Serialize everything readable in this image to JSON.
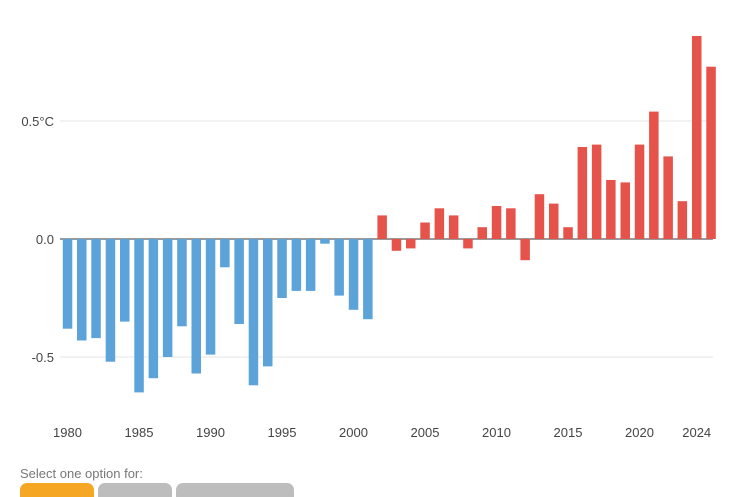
{
  "chart_data": {
    "type": "bar",
    "title": "",
    "xlabel": "",
    "ylabel": "",
    "ylim": [
      -0.75,
      0.9
    ],
    "y_ticks": [
      {
        "value": 0.5,
        "label": "0.5°C"
      },
      {
        "value": 0.0,
        "label": "0.0"
      },
      {
        "value": -0.5,
        "label": "-0.5"
      }
    ],
    "x_ticks": [
      "1980",
      "1985",
      "1990",
      "1995",
      "2000",
      "2005",
      "2010",
      "2015",
      "2020",
      "2024"
    ],
    "colors": {
      "negative_era": "#5ba3d9",
      "positive_era": "#e5534b",
      "zero_line": "#333333",
      "grid": "#e6e6e6"
    },
    "categories": [
      1980,
      1981,
      1982,
      1983,
      1984,
      1985,
      1986,
      1987,
      1988,
      1989,
      1990,
      1991,
      1992,
      1993,
      1994,
      1995,
      1996,
      1997,
      1998,
      1999,
      2000,
      2001,
      2002,
      2003,
      2004,
      2005,
      2006,
      2007,
      2008,
      2009,
      2010,
      2011,
      2012,
      2013,
      2014,
      2015,
      2016,
      2017,
      2018,
      2019,
      2020,
      2021,
      2022,
      2023,
      2024,
      2025
    ],
    "values": [
      -0.38,
      -0.43,
      -0.42,
      -0.52,
      -0.35,
      -0.65,
      -0.59,
      -0.5,
      -0.37,
      -0.57,
      -0.49,
      -0.12,
      -0.36,
      -0.62,
      -0.54,
      -0.25,
      -0.22,
      -0.22,
      -0.02,
      -0.24,
      -0.3,
      -0.34,
      0.1,
      -0.05,
      -0.04,
      0.07,
      0.13,
      0.1,
      -0.04,
      0.05,
      0.14,
      0.13,
      -0.09,
      0.19,
      0.15,
      0.05,
      0.39,
      0.4,
      0.25,
      0.24,
      0.4,
      0.54,
      0.35,
      0.16,
      0.86,
      0.73
    ],
    "grid": true
  },
  "controls": {
    "prompt": "Select one option for:",
    "options": [
      "",
      "",
      ""
    ]
  }
}
